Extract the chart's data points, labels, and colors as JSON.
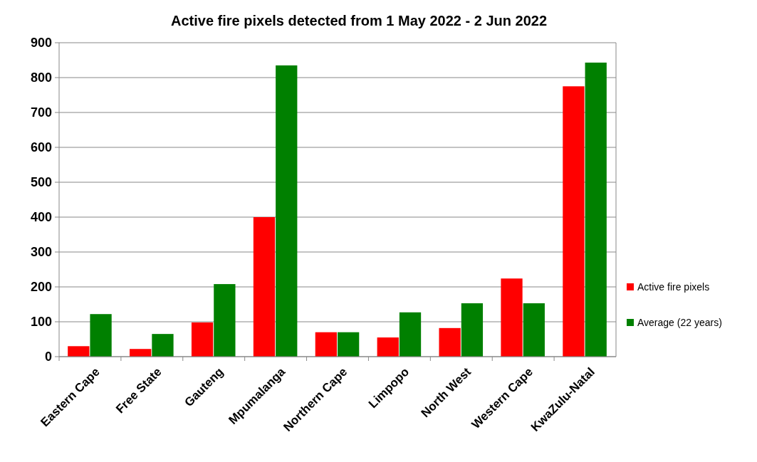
{
  "chart_data": {
    "type": "bar",
    "title": "Active fire pixels detected from 1 May 2022 - 2 Jun 2022",
    "categories": [
      "Eastern Cape",
      "Free State",
      "Gauteng",
      "Mpumalanga",
      "Northern Cape",
      "Limpopo",
      "North West",
      "Western Cape",
      "KwaZulu-Natal"
    ],
    "series": [
      {
        "name": "Active fire pixels",
        "color": "#ff0000",
        "values": [
          30,
          22,
          98,
          400,
          70,
          55,
          82,
          224,
          775
        ]
      },
      {
        "name": "Average (22 years)",
        "color": "#008000",
        "values": [
          122,
          65,
          208,
          835,
          70,
          127,
          153,
          153,
          843
        ]
      }
    ],
    "ylim": [
      0,
      900
    ],
    "yticks": [
      0,
      100,
      200,
      300,
      400,
      500,
      600,
      700,
      800,
      900
    ],
    "grid": "y",
    "legend": "right"
  }
}
